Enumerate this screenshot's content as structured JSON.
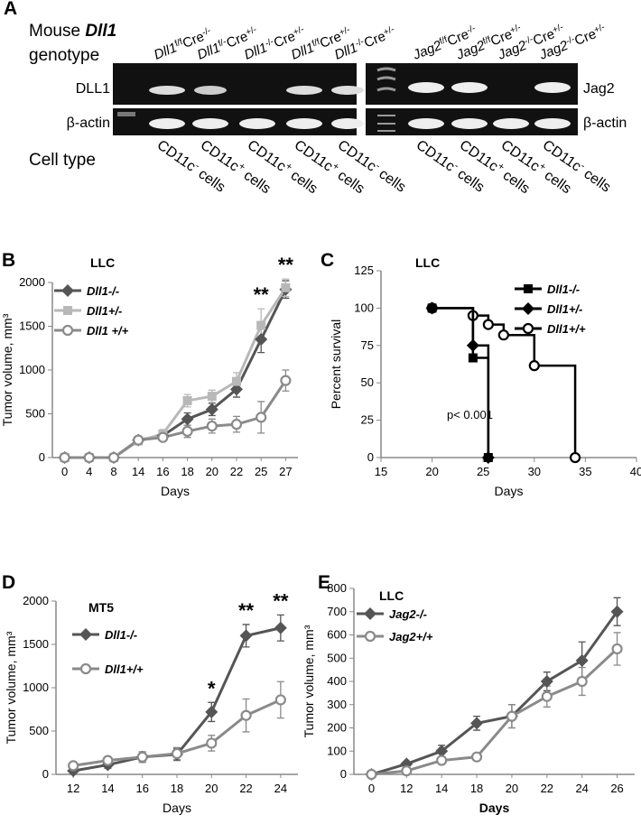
{
  "panel_a": {
    "label": "A",
    "heading": {
      "line1": "Mouse",
      "gene": "Dll1",
      "line2": "genotype"
    },
    "cell_type": "Cell type",
    "left_rows": [
      "DLL1",
      "β-actin"
    ],
    "right_rows": [
      "Jag2",
      "β-actin"
    ],
    "left_lanes": [
      {
        "gene": "Dll1",
        "allele": "f/f",
        "cre": "Cre",
        "cre_allele": "-/-"
      },
      {
        "gene": "Dll1",
        "allele": "f/-",
        "cre": "Cre",
        "cre_allele": "+/-"
      },
      {
        "gene": "Dll1",
        "allele": "-/-",
        "cre": "Cre",
        "cre_allele": "+/-"
      },
      {
        "gene": "Dll1",
        "allele": "f/f",
        "cre": "Cre",
        "cre_allele": "+/-"
      },
      {
        "gene": "Dll1",
        "allele": "-/-",
        "cre": "Cre",
        "cre_allele": "+/-"
      }
    ],
    "right_lanes": [
      {
        "gene": "Jag2",
        "allele": "f/f",
        "cre": "Cre",
        "cre_allele": "-/-"
      },
      {
        "gene": "Jag2",
        "allele": "f/f",
        "cre": "Cre",
        "cre_allele": "+/-"
      },
      {
        "gene": "Jag2",
        "allele": "-/-",
        "cre": "Cre",
        "cre_allele": "+/-"
      },
      {
        "gene": "Jag2",
        "allele": "-/-",
        "cre": "Cre",
        "cre_allele": "+/-"
      }
    ],
    "left_cells": [
      {
        "name": "CD11c",
        "sup": "-",
        "rest": "cells"
      },
      {
        "name": "CD11c",
        "sup": "+",
        "rest": "cells"
      },
      {
        "name": "CD11c",
        "sup": "+",
        "rest": "cells"
      },
      {
        "name": "CD11c",
        "sup": "+",
        "rest": "cells"
      },
      {
        "name": "CD11c",
        "sup": "-",
        "rest": "cells"
      }
    ],
    "right_cells": [
      {
        "name": "CD11c",
        "sup": "-",
        "rest": "cells"
      },
      {
        "name": "CD11c",
        "sup": "+",
        "rest": "cells"
      },
      {
        "name": "CD11c",
        "sup": "+",
        "rest": "cells"
      },
      {
        "name": "CD11c",
        "sup": "-",
        "rest": "cells"
      }
    ]
  },
  "chart_data": [
    {
      "type": "line",
      "panel": "B",
      "title": "LLC",
      "x_label": "Days",
      "y_label": "Tumor volume, mm³",
      "categories": [
        "0",
        "4",
        "8",
        "14",
        "16",
        "18",
        "20",
        "22",
        "25",
        "27"
      ],
      "ylim": [
        0,
        2000
      ],
      "yticks": [
        0,
        500,
        1000,
        1500,
        2000
      ],
      "legend": "upper left",
      "series": [
        {
          "name": "Dll1-/-",
          "color": "#555555",
          "marker": "diamond",
          "values": [
            0,
            0,
            0,
            200,
            250,
            440,
            550,
            780,
            1350,
            1920
          ],
          "errors": [
            20,
            20,
            20,
            40,
            50,
            70,
            70,
            90,
            150,
            100
          ]
        },
        {
          "name": "Dll1+/-",
          "color": "#b8b8b8",
          "marker": "square",
          "values": [
            0,
            0,
            0,
            190,
            270,
            650,
            700,
            870,
            1510,
            1940
          ],
          "errors": [
            20,
            20,
            20,
            40,
            50,
            70,
            70,
            100,
            190,
            100
          ]
        },
        {
          "name": "Dll1 +/+",
          "color": "#8a8a8a",
          "marker": "circle",
          "values": [
            0,
            0,
            0,
            200,
            230,
            300,
            360,
            380,
            460,
            880
          ],
          "errors": [
            20,
            20,
            20,
            40,
            40,
            70,
            80,
            90,
            180,
            120
          ]
        }
      ],
      "annotations": [
        {
          "text": "**",
          "category": "25"
        },
        {
          "text": "**",
          "category": "27"
        }
      ]
    },
    {
      "type": "step",
      "panel": "C",
      "title": "LLC",
      "x_label": "Days",
      "y_label": "Percent survival",
      "xlim": [
        15,
        40
      ],
      "xticks": [
        15,
        20,
        25,
        30,
        35,
        40
      ],
      "ylim": [
        0,
        125
      ],
      "yticks": [
        0,
        25,
        50,
        75,
        100,
        125
      ],
      "legend": "upper right",
      "note": "p< 0.001",
      "series": [
        {
          "name": "Dll1-/-",
          "color": "#000000",
          "marker": "square",
          "x": [
            20,
            24,
            25.5
          ],
          "values": [
            100,
            66.7,
            0
          ]
        },
        {
          "name": "Dll1+/-",
          "color": "#000000",
          "marker": "diamond",
          "x": [
            20,
            24,
            25.5
          ],
          "values": [
            100,
            75,
            0
          ]
        },
        {
          "name": "Dll1+/+",
          "color": "#000000",
          "marker": "circle",
          "x": [
            20,
            24,
            25.5,
            27,
            30,
            34
          ],
          "values": [
            100,
            95,
            89,
            82,
            61.5,
            0
          ]
        }
      ]
    },
    {
      "type": "line",
      "panel": "D",
      "title": "MT5",
      "x_label": "Days",
      "y_label": "Tumor volume, mm³",
      "categories": [
        "12",
        "14",
        "16",
        "18",
        "20",
        "22",
        "24"
      ],
      "ylim": [
        0,
        2000
      ],
      "yticks": [
        0,
        500,
        1000,
        1500,
        2000
      ],
      "legend": "upper left",
      "series": [
        {
          "name": "Dll1-/-",
          "color": "#555555",
          "marker": "diamond",
          "values": [
            40,
            110,
            200,
            230,
            720,
            1600,
            1690
          ],
          "errors": [
            30,
            40,
            60,
            70,
            110,
            130,
            150
          ]
        },
        {
          "name": "Dll1+/+",
          "color": "#8a8a8a",
          "marker": "circle",
          "values": [
            100,
            160,
            200,
            240,
            360,
            680,
            860
          ],
          "errors": [
            30,
            40,
            60,
            70,
            90,
            190,
            210
          ]
        }
      ],
      "annotations": [
        {
          "text": "*",
          "category": "20"
        },
        {
          "text": "**",
          "category": "22"
        },
        {
          "text": "**",
          "category": "24"
        }
      ]
    },
    {
      "type": "line",
      "panel": "E",
      "title": "LLC",
      "x_label": "Days",
      "y_label": "Tumor volume, mm³",
      "categories": [
        "0",
        "12",
        "14",
        "18",
        "20",
        "22",
        "24",
        "26"
      ],
      "ylim": [
        0,
        800
      ],
      "yticks": [
        0,
        100,
        200,
        300,
        400,
        500,
        600,
        700,
        800
      ],
      "legend": "upper left",
      "series": [
        {
          "name": "Jag2-/-",
          "color": "#555555",
          "marker": "diamond",
          "values": [
            0,
            45,
            100,
            220,
            250,
            400,
            490,
            700
          ],
          "errors": [
            5,
            10,
            25,
            30,
            50,
            40,
            80,
            60
          ]
        },
        {
          "name": "Jag2+/+",
          "color": "#8a8a8a",
          "marker": "circle",
          "values": [
            0,
            15,
            60,
            75,
            250,
            335,
            400,
            540
          ],
          "errors": [
            5,
            10,
            15,
            15,
            50,
            45,
            60,
            70
          ]
        }
      ],
      "annotations": []
    }
  ]
}
